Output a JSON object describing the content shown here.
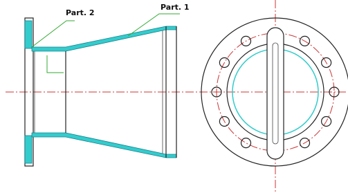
{
  "labels": [
    "Part. 2",
    "Part. 1"
  ]
}
